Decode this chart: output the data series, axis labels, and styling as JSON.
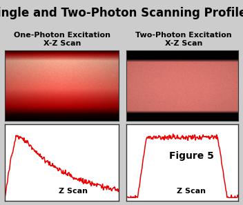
{
  "title": "Single and Two-Photon Scanning Profiles",
  "title_fontsize": 12,
  "title_fontweight": "bold",
  "left_label": "One-Photon Excitation\nX-Z Scan",
  "right_label": "Two-Photon Excitation\nX-Z Scan",
  "col_label_fontsize": 8,
  "col_label_fontweight": "bold",
  "zscan_label": "Z Scan",
  "figure5_label": "Figure 5",
  "figure5_fontsize": 10,
  "figure5_fontweight": "bold",
  "zscan_fontsize": 8,
  "zscan_fontweight": "bold",
  "line_color": "#EE0000",
  "background_color": "#CCCCCC",
  "plot_bg": "#FFFFFF",
  "border_color": "#333333",
  "img_seed": 12345
}
